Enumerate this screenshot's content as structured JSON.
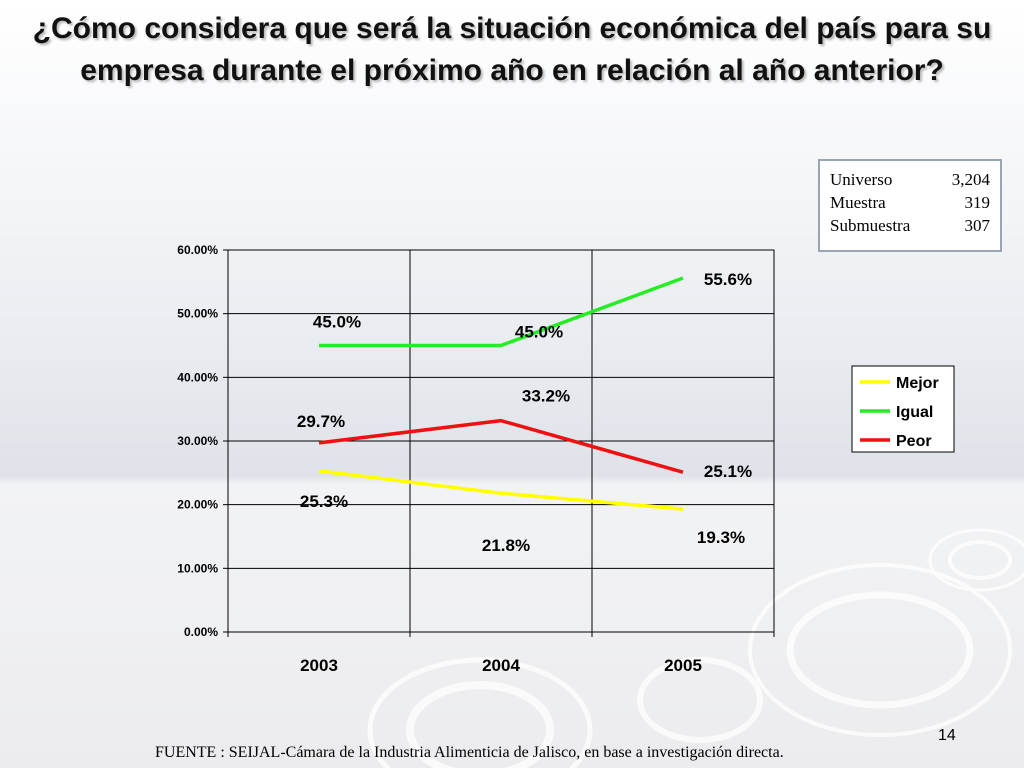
{
  "title": "¿Cómo considera que será la situación económica del país para su empresa durante el próximo año en relación al año anterior?",
  "info": [
    {
      "label": "Universo",
      "value": "3,204"
    },
    {
      "label": "Muestra",
      "value": "319"
    },
    {
      "label": "Submuestra",
      "value": "307"
    }
  ],
  "footer": "FUENTE : SEIJAL-Cámara de la Industria Alimenticia de Jalisco,  en base a investigación directa.",
  "page_number": "14",
  "chart_data": {
    "type": "line",
    "title": "",
    "xlabel": "",
    "ylabel": "",
    "categories": [
      "2003",
      "2004",
      "2005"
    ],
    "ylim": [
      0,
      60
    ],
    "yticks": [
      "0.00%",
      "10.00%",
      "20.00%",
      "30.00%",
      "40.00%",
      "50.00%",
      "60.00%"
    ],
    "grid": true,
    "legend_position": "right",
    "series": [
      {
        "name": "Mejor",
        "color": "#ffff00",
        "values": [
          25.3,
          21.8,
          19.3
        ],
        "labels": [
          "25.3%",
          "21.8%",
          "19.3%"
        ]
      },
      {
        "name": "Igual",
        "color": "#22ee22",
        "values": [
          45.0,
          45.0,
          55.6
        ],
        "labels": [
          "45.0%",
          "45.0%",
          "55.6%"
        ]
      },
      {
        "name": "Peor",
        "color": "#ee1111",
        "values": [
          29.7,
          33.2,
          25.1
        ],
        "labels": [
          "29.7%",
          "33.2%",
          "25.1%"
        ]
      }
    ]
  }
}
